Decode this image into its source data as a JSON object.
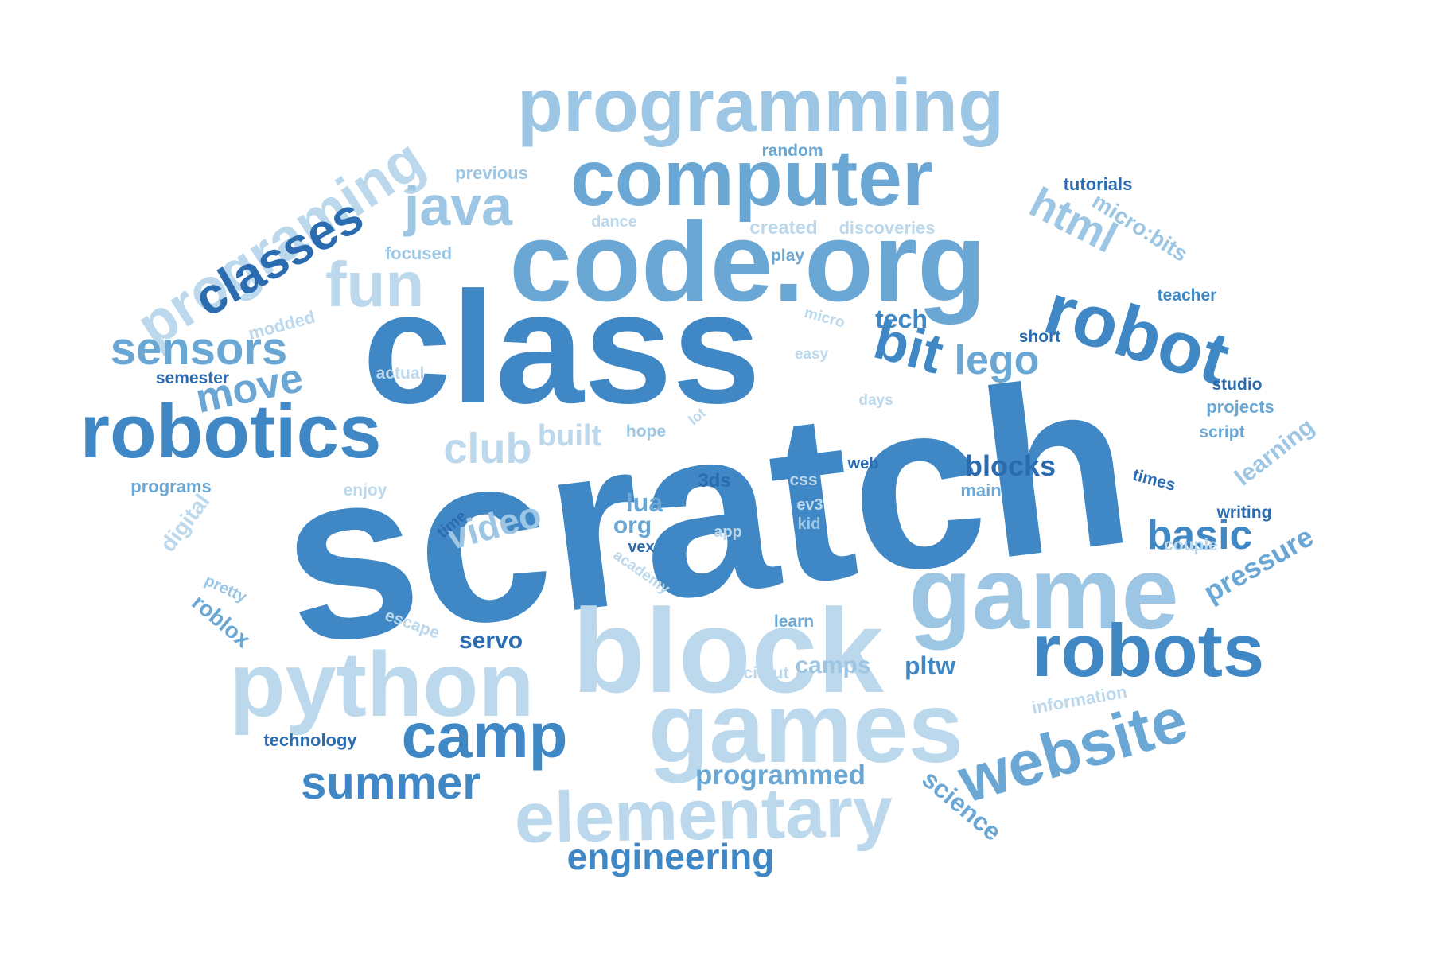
{
  "palette": {
    "dark": "#2b6cb0",
    "medium": "#3f88c5",
    "mid_light": "#6aa7d4",
    "light": "#9cc6e3",
    "pale": "#bcd8ec"
  },
  "words": [
    {
      "text": "scratch",
      "color": "medium"
    },
    {
      "text": "class",
      "color": "medium"
    },
    {
      "text": "code.org",
      "color": "mid_light"
    },
    {
      "text": "programming",
      "color": "light"
    },
    {
      "text": "computer",
      "color": "mid_light"
    },
    {
      "text": "block",
      "color": "pale"
    },
    {
      "text": "game",
      "color": "light"
    },
    {
      "text": "games",
      "color": "pale"
    },
    {
      "text": "python",
      "color": "pale"
    },
    {
      "text": "robotics",
      "color": "medium"
    },
    {
      "text": "robots",
      "color": "medium"
    },
    {
      "text": "robot",
      "color": "medium"
    },
    {
      "text": "elementary",
      "color": "pale"
    },
    {
      "text": "website",
      "color": "mid_light"
    },
    {
      "text": "camp",
      "color": "medium"
    },
    {
      "text": "programing",
      "color": "pale"
    },
    {
      "text": "classes",
      "color": "dark"
    },
    {
      "text": "java",
      "color": "light"
    },
    {
      "text": "fun",
      "color": "pale"
    },
    {
      "text": "bit",
      "color": "medium"
    },
    {
      "text": "html",
      "color": "light"
    },
    {
      "text": "sensors",
      "color": "mid_light"
    },
    {
      "text": "summer",
      "color": "medium"
    },
    {
      "text": "engineering",
      "color": "medium"
    },
    {
      "text": "basic",
      "color": "medium"
    },
    {
      "text": "club",
      "color": "pale"
    },
    {
      "text": "move",
      "color": "mid_light"
    },
    {
      "text": "lego",
      "color": "mid_light"
    },
    {
      "text": "video",
      "color": "light"
    },
    {
      "text": "blocks",
      "color": "dark"
    },
    {
      "text": "pressure",
      "color": "mid_light"
    },
    {
      "text": "programmed",
      "color": "mid_light"
    },
    {
      "text": "science",
      "color": "mid_light"
    },
    {
      "text": "learning",
      "color": "light"
    },
    {
      "text": "micro:bits",
      "color": "light"
    },
    {
      "text": "tech",
      "color": "medium"
    },
    {
      "text": "built",
      "color": "pale"
    },
    {
      "text": "lua",
      "color": "mid_light"
    },
    {
      "text": "org",
      "color": "mid_light"
    },
    {
      "text": "camps",
      "color": "light"
    },
    {
      "text": "pltw",
      "color": "medium"
    },
    {
      "text": "servo",
      "color": "dark"
    },
    {
      "text": "roblox",
      "color": "mid_light"
    },
    {
      "text": "digital",
      "color": "pale"
    },
    {
      "text": "technology",
      "color": "dark"
    },
    {
      "text": "information",
      "color": "pale"
    },
    {
      "text": "tutorials",
      "color": "dark"
    },
    {
      "text": "random",
      "color": "mid_light"
    },
    {
      "text": "previous",
      "color": "light"
    },
    {
      "text": "dance",
      "color": "pale"
    },
    {
      "text": "created",
      "color": "pale"
    },
    {
      "text": "discoveries",
      "color": "pale"
    },
    {
      "text": "focused",
      "color": "light"
    },
    {
      "text": "play",
      "color": "mid_light"
    },
    {
      "text": "teacher",
      "color": "medium"
    },
    {
      "text": "modded",
      "color": "pale"
    },
    {
      "text": "micro",
      "color": "pale"
    },
    {
      "text": "short",
      "color": "dark"
    },
    {
      "text": "easy",
      "color": "pale"
    },
    {
      "text": "semester",
      "color": "dark"
    },
    {
      "text": "actual",
      "color": "pale"
    },
    {
      "text": "studio",
      "color": "dark"
    },
    {
      "text": "days",
      "color": "pale"
    },
    {
      "text": "projects",
      "color": "mid_light"
    },
    {
      "text": "hope",
      "color": "light"
    },
    {
      "text": "lot",
      "color": "pale"
    },
    {
      "text": "script",
      "color": "mid_light"
    },
    {
      "text": "web",
      "color": "dark"
    },
    {
      "text": "3ds",
      "color": "dark"
    },
    {
      "text": "css",
      "color": "pale"
    },
    {
      "text": "times",
      "color": "dark"
    },
    {
      "text": "programs",
      "color": "mid_light"
    },
    {
      "text": "enjoy",
      "color": "pale"
    },
    {
      "text": "main",
      "color": "mid_light"
    },
    {
      "text": "ev3",
      "color": "pale"
    },
    {
      "text": "writing",
      "color": "dark"
    },
    {
      "text": "time",
      "color": "dark"
    },
    {
      "text": "app",
      "color": "pale"
    },
    {
      "text": "kid",
      "color": "light"
    },
    {
      "text": "couple",
      "color": "pale"
    },
    {
      "text": "academy",
      "color": "pale"
    },
    {
      "text": "vex",
      "color": "dark"
    },
    {
      "text": "pretty",
      "color": "light"
    },
    {
      "text": "escape",
      "color": "pale"
    },
    {
      "text": "learn",
      "color": "mid_light"
    },
    {
      "text": "circut",
      "color": "pale"
    }
  ]
}
